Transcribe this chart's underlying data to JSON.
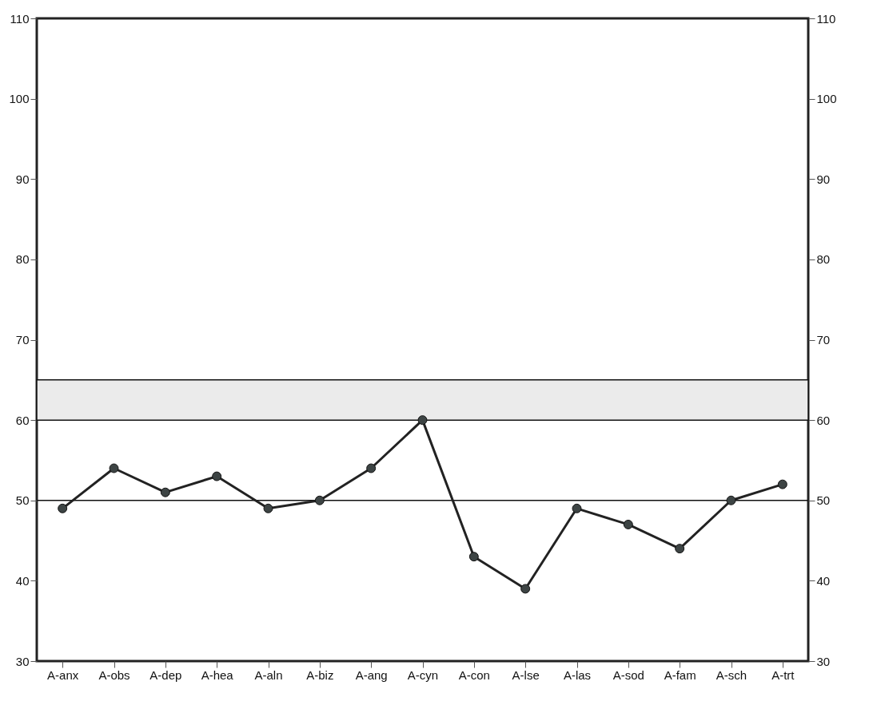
{
  "chart_data": {
    "type": "line",
    "categories": [
      "A-anx",
      "A-obs",
      "A-dep",
      "A-hea",
      "A-aln",
      "A-biz",
      "A-ang",
      "A-cyn",
      "A-con",
      "A-lse",
      "A-las",
      "A-sod",
      "A-fam",
      "A-sch",
      "A-trt"
    ],
    "series": [
      {
        "color": "#222222",
        "values": [
          49,
          54,
          51,
          53,
          49,
          50,
          54,
          60,
          43,
          39,
          49,
          47,
          44,
          50,
          52
        ]
      }
    ],
    "marker": "circle",
    "ylim": [
      30,
      110
    ],
    "yticks": [
      30,
      40,
      50,
      60,
      70,
      80,
      90,
      100,
      110
    ],
    "y2lim": [
      30,
      110
    ],
    "y2ticks": [
      30,
      40,
      50,
      60,
      70,
      80,
      90,
      100,
      110
    ],
    "bands": [
      {
        "axis": "y",
        "from": 60,
        "to": 65,
        "color": "#ebebeb"
      }
    ],
    "ref_lines": [
      {
        "axis": "y",
        "value": 50
      }
    ],
    "grid": false
  }
}
